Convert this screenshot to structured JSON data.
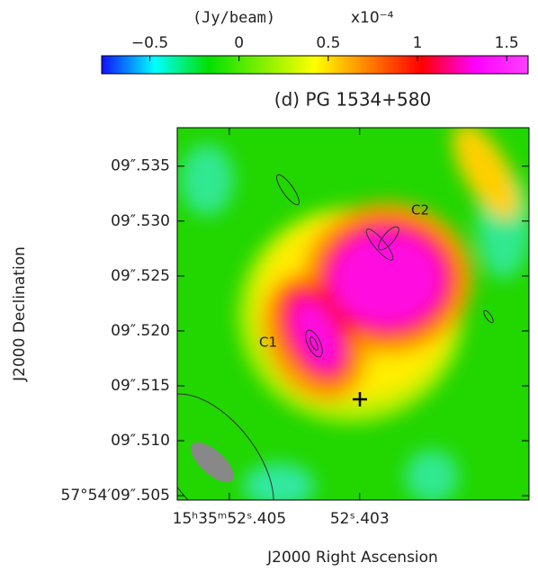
{
  "chart_data": {
    "type": "image",
    "title": "(d) PG 1534+580",
    "xlabel": "J2000 Right Ascension",
    "ylabel": "J2000 Declination",
    "annotations": [
      "C1",
      "C2"
    ],
    "colorbar": {
      "label": "(Jy/beam)",
      "scale": "x10⁻⁴",
      "lim": [
        -0.77,
        1.62
      ],
      "ticks": [
        {
          "value": -0.5,
          "label": "−0.5"
        },
        0,
        0.5,
        1,
        1.5
      ],
      "colormap": [
        "#1010ff",
        "#00ffff",
        "#00e000",
        "#80f000",
        "#ffff00",
        "#ff8000",
        "#ff0000",
        "#ff00ff",
        "#ff40ff"
      ]
    },
    "xlim": [
      52.4058,
      52.4004
    ],
    "xticks": [
      {
        "value": 52.405,
        "label": "15ʰ35ᵐ52ˢ.405"
      },
      {
        "value": 52.403,
        "label": "52ˢ.403"
      }
    ],
    "ylim": [
      9.5046,
      9.5385
    ],
    "yticks": [
      {
        "value": 9.535,
        "label": "09″.535"
      },
      {
        "value": 9.53,
        "label": "09″.530"
      },
      {
        "value": 9.525,
        "label": "09″.525"
      },
      {
        "value": 9.52,
        "label": "09″.520"
      },
      {
        "value": 9.515,
        "label": "09″.515"
      },
      {
        "value": 9.51,
        "label": "09″.510"
      },
      {
        "value": 9.505,
        "label": "57°54′09″.505"
      }
    ]
  }
}
